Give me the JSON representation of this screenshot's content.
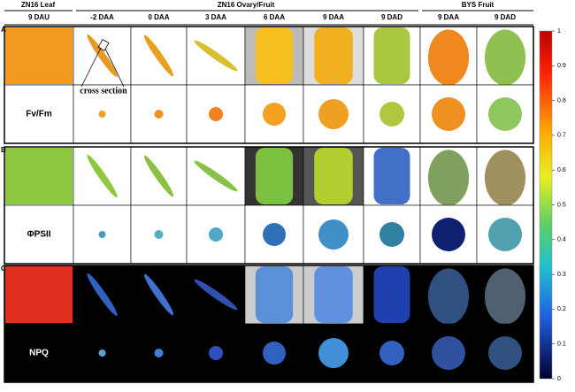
{
  "header": {
    "groups": [
      {
        "label": "ZN16 Leaf"
      },
      {
        "label": "ZN16 Ovary/Fruit"
      },
      {
        "label": "BYS Fruit"
      }
    ],
    "columns": [
      "9 DAU",
      "-2 DAA",
      "0 DAA",
      "3 DAA",
      "6 DAA",
      "9 DAA",
      "9 DAD",
      "9 DAA",
      "9 DAD"
    ]
  },
  "panels": [
    {
      "letter": "A",
      "parameter": "Fv/Fm"
    },
    {
      "letter": "B",
      "parameter": "ΦPSII"
    },
    {
      "letter": "C",
      "parameter": "NPQ"
    }
  ],
  "annotation": "cross section",
  "colorbar": {
    "lim": [
      0,
      1
    ],
    "ticks": [
      1,
      0.9,
      0.8,
      0.7,
      0.6,
      0.5,
      0.4,
      0.3,
      0.2,
      0.1,
      0
    ]
  }
}
